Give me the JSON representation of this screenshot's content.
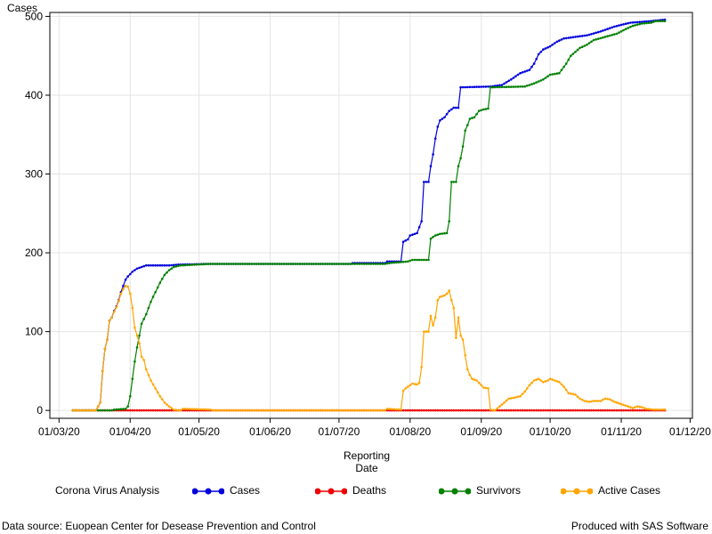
{
  "footnote_left": "Data source: Euopean Center for Desease Prevention and Control",
  "footnote_right": "Produced with SAS Software",
  "chart_data": {
    "type": "line",
    "ylabel": "Cases",
    "xlabel_line1": "Reporting",
    "xlabel_line2": "Date",
    "x_unit": "date",
    "xlim": [
      "2020-02-26",
      "2020-12-02"
    ],
    "ylim": [
      -10,
      505
    ],
    "yticks": [
      0,
      100,
      200,
      300,
      400,
      500
    ],
    "xticks": [
      {
        "date": "2020-03-01",
        "label": "01/03/20"
      },
      {
        "date": "2020-04-01",
        "label": "01/04/20"
      },
      {
        "date": "2020-05-01",
        "label": "01/05/20"
      },
      {
        "date": "2020-06-01",
        "label": "01/06/20"
      },
      {
        "date": "2020-07-01",
        "label": "01/07/20"
      },
      {
        "date": "2020-08-01",
        "label": "01/08/20"
      },
      {
        "date": "2020-09-01",
        "label": "01/09/20"
      },
      {
        "date": "2020-10-01",
        "label": "01/10/20"
      },
      {
        "date": "2020-11-01",
        "label": "01/11/20"
      },
      {
        "date": "2020-12-01",
        "label": "01/12/20"
      }
    ],
    "grid": true,
    "legend": {
      "title": "Corona Virus Analysis",
      "placement": "bottom"
    },
    "series": [
      {
        "name": "Cases",
        "color": "#0000dd",
        "points": [
          [
            "2020-03-07",
            0
          ],
          [
            "2020-03-17",
            0
          ],
          [
            "2020-03-19",
            10
          ],
          [
            "2020-03-20",
            50
          ],
          [
            "2020-03-21",
            78
          ],
          [
            "2020-03-22",
            90
          ],
          [
            "2020-03-23",
            114
          ],
          [
            "2020-03-24",
            118
          ],
          [
            "2020-03-25",
            126
          ],
          [
            "2020-03-26",
            132
          ],
          [
            "2020-03-27",
            140
          ],
          [
            "2020-03-28",
            150
          ],
          [
            "2020-03-29",
            158
          ],
          [
            "2020-03-30",
            166
          ],
          [
            "2020-03-31",
            170
          ],
          [
            "2020-04-02",
            176
          ],
          [
            "2020-04-04",
            180
          ],
          [
            "2020-04-06",
            182
          ],
          [
            "2020-04-08",
            184
          ],
          [
            "2020-04-18",
            184
          ],
          [
            "2020-04-22",
            185
          ],
          [
            "2020-05-06",
            186
          ],
          [
            "2020-07-06",
            186
          ],
          [
            "2020-07-07",
            187
          ],
          [
            "2020-07-21",
            187
          ],
          [
            "2020-07-22",
            189
          ],
          [
            "2020-07-28",
            189
          ],
          [
            "2020-07-29",
            214
          ],
          [
            "2020-07-31",
            217
          ],
          [
            "2020-08-01",
            222
          ],
          [
            "2020-08-04",
            225
          ],
          [
            "2020-08-06",
            240
          ],
          [
            "2020-08-07",
            290
          ],
          [
            "2020-08-09",
            290
          ],
          [
            "2020-08-10",
            310
          ],
          [
            "2020-08-11",
            325
          ],
          [
            "2020-08-12",
            345
          ],
          [
            "2020-08-13",
            360
          ],
          [
            "2020-08-14",
            368
          ],
          [
            "2020-08-16",
            372
          ],
          [
            "2020-08-18",
            380
          ],
          [
            "2020-08-20",
            384
          ],
          [
            "2020-08-22",
            384
          ],
          [
            "2020-08-23",
            410
          ],
          [
            "2020-09-05",
            411
          ],
          [
            "2020-09-10",
            413
          ],
          [
            "2020-09-14",
            420
          ],
          [
            "2020-09-18",
            428
          ],
          [
            "2020-09-22",
            432
          ],
          [
            "2020-09-24",
            440
          ],
          [
            "2020-09-26",
            452
          ],
          [
            "2020-09-28",
            458
          ],
          [
            "2020-10-01",
            462
          ],
          [
            "2020-10-04",
            468
          ],
          [
            "2020-10-07",
            472
          ],
          [
            "2020-10-12",
            474
          ],
          [
            "2020-10-17",
            476
          ],
          [
            "2020-10-22",
            480
          ],
          [
            "2020-10-26",
            484
          ],
          [
            "2020-10-29",
            487
          ],
          [
            "2020-11-02",
            490
          ],
          [
            "2020-11-05",
            492
          ],
          [
            "2020-11-14",
            494
          ],
          [
            "2020-11-20",
            496
          ]
        ]
      },
      {
        "name": "Deaths",
        "color": "#ee0000",
        "points": [
          [
            "2020-03-07",
            0
          ],
          [
            "2020-11-20",
            0
          ]
        ]
      },
      {
        "name": "Survivors",
        "color": "#008000",
        "points": [
          [
            "2020-03-07",
            0
          ],
          [
            "2020-03-24",
            0
          ],
          [
            "2020-03-25",
            1
          ],
          [
            "2020-03-30",
            2
          ],
          [
            "2020-03-31",
            5
          ],
          [
            "2020-04-01",
            18
          ],
          [
            "2020-04-02",
            40
          ],
          [
            "2020-04-03",
            62
          ],
          [
            "2020-04-04",
            80
          ],
          [
            "2020-04-05",
            95
          ],
          [
            "2020-04-06",
            110
          ],
          [
            "2020-04-08",
            122
          ],
          [
            "2020-04-10",
            138
          ],
          [
            "2020-04-12",
            150
          ],
          [
            "2020-04-14",
            162
          ],
          [
            "2020-04-16",
            172
          ],
          [
            "2020-04-18",
            178
          ],
          [
            "2020-04-20",
            182
          ],
          [
            "2020-04-23",
            184
          ],
          [
            "2020-05-06",
            186
          ],
          [
            "2020-07-21",
            186
          ],
          [
            "2020-07-23",
            187
          ],
          [
            "2020-07-31",
            189
          ],
          [
            "2020-08-02",
            191
          ],
          [
            "2020-08-09",
            191
          ],
          [
            "2020-08-10",
            218
          ],
          [
            "2020-08-12",
            222
          ],
          [
            "2020-08-14",
            224
          ],
          [
            "2020-08-17",
            225
          ],
          [
            "2020-08-18",
            240
          ],
          [
            "2020-08-19",
            290
          ],
          [
            "2020-08-21",
            290
          ],
          [
            "2020-08-22",
            310
          ],
          [
            "2020-08-23",
            320
          ],
          [
            "2020-08-24",
            335
          ],
          [
            "2020-08-25",
            355
          ],
          [
            "2020-08-26",
            362
          ],
          [
            "2020-08-27",
            370
          ],
          [
            "2020-08-29",
            372
          ],
          [
            "2020-08-31",
            380
          ],
          [
            "2020-09-02",
            382
          ],
          [
            "2020-09-04",
            383
          ],
          [
            "2020-09-05",
            410
          ],
          [
            "2020-09-20",
            411
          ],
          [
            "2020-09-24",
            415
          ],
          [
            "2020-09-28",
            420
          ],
          [
            "2020-10-01",
            426
          ],
          [
            "2020-10-05",
            428
          ],
          [
            "2020-10-08",
            440
          ],
          [
            "2020-10-10",
            450
          ],
          [
            "2020-10-12",
            455
          ],
          [
            "2020-10-14",
            460
          ],
          [
            "2020-10-17",
            464
          ],
          [
            "2020-10-20",
            470
          ],
          [
            "2020-10-25",
            474
          ],
          [
            "2020-10-30",
            478
          ],
          [
            "2020-11-03",
            484
          ],
          [
            "2020-11-06",
            488
          ],
          [
            "2020-11-10",
            491
          ],
          [
            "2020-11-14",
            492
          ],
          [
            "2020-11-16",
            494
          ],
          [
            "2020-11-20",
            494
          ]
        ]
      },
      {
        "name": "Active Cases",
        "color": "#ffa500",
        "points": [
          [
            "2020-03-07",
            0
          ],
          [
            "2020-03-17",
            0
          ],
          [
            "2020-03-19",
            10
          ],
          [
            "2020-03-20",
            50
          ],
          [
            "2020-03-21",
            78
          ],
          [
            "2020-03-22",
            90
          ],
          [
            "2020-03-23",
            114
          ],
          [
            "2020-03-24",
            118
          ],
          [
            "2020-03-25",
            125
          ],
          [
            "2020-03-26",
            131
          ],
          [
            "2020-03-27",
            139
          ],
          [
            "2020-03-28",
            148
          ],
          [
            "2020-03-29",
            154
          ],
          [
            "2020-03-30",
            158
          ],
          [
            "2020-03-31",
            157
          ],
          [
            "2020-04-01",
            148
          ],
          [
            "2020-04-02",
            130
          ],
          [
            "2020-04-03",
            105
          ],
          [
            "2020-04-04",
            95
          ],
          [
            "2020-04-05",
            85
          ],
          [
            "2020-04-06",
            68
          ],
          [
            "2020-04-07",
            64
          ],
          [
            "2020-04-08",
            52
          ],
          [
            "2020-04-09",
            45
          ],
          [
            "2020-04-10",
            38
          ],
          [
            "2020-04-12",
            28
          ],
          [
            "2020-04-14",
            18
          ],
          [
            "2020-04-16",
            10
          ],
          [
            "2020-04-18",
            5
          ],
          [
            "2020-04-20",
            1
          ],
          [
            "2020-04-23",
            0
          ],
          [
            "2020-04-24",
            2
          ],
          [
            "2020-05-06",
            1
          ],
          [
            "2020-05-07",
            0
          ],
          [
            "2020-07-21",
            0
          ],
          [
            "2020-07-22",
            2
          ],
          [
            "2020-07-28",
            1
          ],
          [
            "2020-07-29",
            25
          ],
          [
            "2020-07-30",
            28
          ],
          [
            "2020-07-31",
            30
          ],
          [
            "2020-08-02",
            34
          ],
          [
            "2020-08-04",
            33
          ],
          [
            "2020-08-05",
            35
          ],
          [
            "2020-08-06",
            55
          ],
          [
            "2020-08-07",
            100
          ],
          [
            "2020-08-09",
            100
          ],
          [
            "2020-08-10",
            120
          ],
          [
            "2020-08-11",
            108
          ],
          [
            "2020-08-12",
            118
          ],
          [
            "2020-08-13",
            140
          ],
          [
            "2020-08-14",
            144
          ],
          [
            "2020-08-16",
            146
          ],
          [
            "2020-08-17",
            148
          ],
          [
            "2020-08-18",
            152
          ],
          [
            "2020-08-19",
            140
          ],
          [
            "2020-08-20",
            130
          ],
          [
            "2020-08-21",
            92
          ],
          [
            "2020-08-22",
            118
          ],
          [
            "2020-08-23",
            95
          ],
          [
            "2020-08-24",
            90
          ],
          [
            "2020-08-25",
            70
          ],
          [
            "2020-08-26",
            52
          ],
          [
            "2020-08-27",
            45
          ],
          [
            "2020-08-28",
            40
          ],
          [
            "2020-08-30",
            38
          ],
          [
            "2020-09-01",
            32
          ],
          [
            "2020-09-02",
            29
          ],
          [
            "2020-09-04",
            28
          ],
          [
            "2020-09-05",
            1
          ],
          [
            "2020-09-07",
            0
          ],
          [
            "2020-09-09",
            5
          ],
          [
            "2020-09-11",
            10
          ],
          [
            "2020-09-13",
            15
          ],
          [
            "2020-09-15",
            16
          ],
          [
            "2020-09-18",
            18
          ],
          [
            "2020-09-20",
            24
          ],
          [
            "2020-09-22",
            32
          ],
          [
            "2020-09-24",
            38
          ],
          [
            "2020-09-26",
            40
          ],
          [
            "2020-09-28",
            36
          ],
          [
            "2020-09-30",
            38
          ],
          [
            "2020-10-01",
            40
          ],
          [
            "2020-10-03",
            38
          ],
          [
            "2020-10-05",
            36
          ],
          [
            "2020-10-07",
            30
          ],
          [
            "2020-10-09",
            22
          ],
          [
            "2020-10-12",
            20
          ],
          [
            "2020-10-14",
            15
          ],
          [
            "2020-10-16",
            12
          ],
          [
            "2020-10-18",
            11
          ],
          [
            "2020-10-20",
            12
          ],
          [
            "2020-10-23",
            12
          ],
          [
            "2020-10-25",
            15
          ],
          [
            "2020-10-27",
            14
          ],
          [
            "2020-10-29",
            11
          ],
          [
            "2020-11-01",
            8
          ],
          [
            "2020-11-04",
            5
          ],
          [
            "2020-11-06",
            3
          ],
          [
            "2020-11-08",
            5
          ],
          [
            "2020-11-10",
            4
          ],
          [
            "2020-11-12",
            2
          ],
          [
            "2020-11-15",
            1
          ],
          [
            "2020-11-20",
            1
          ]
        ]
      }
    ]
  }
}
